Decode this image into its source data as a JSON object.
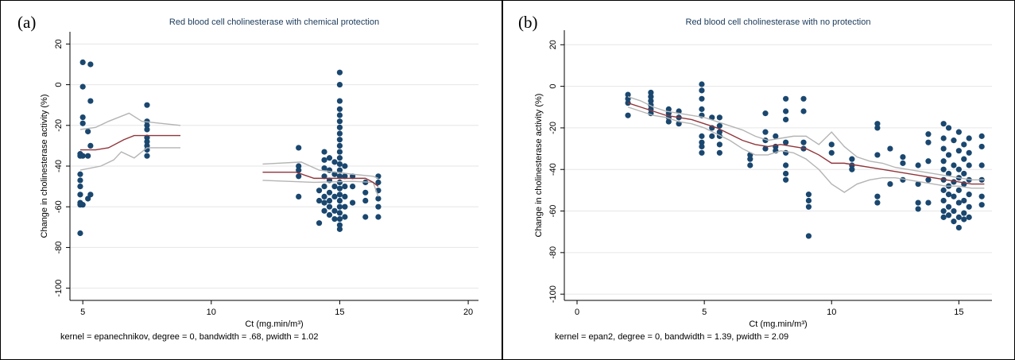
{
  "chart_data": [
    {
      "type": "scatter",
      "panel_label": "(a)",
      "title": "Red blood cell cholinesterase with chemical protection",
      "x_label": "Ct (mg.min/m³)",
      "y_label": "Change in cholinesterase activity (%)",
      "note": "kernel = epanechnikov, degree = 0, bandwidth = .68, pwidth = 1.02",
      "xlim": [
        4.5,
        20.4
      ],
      "ylim": [
        -106,
        26
      ],
      "xticks": [
        5,
        10,
        15,
        20
      ],
      "yticks": [
        20,
        0,
        -20,
        -40,
        -60,
        -80,
        -100
      ],
      "grid": true,
      "series": [
        {
          "type": "scatter",
          "color": "#1a476f",
          "x": [
            4.9,
            4.9,
            4.9,
            4.9,
            4.9,
            4.9,
            4.9,
            4.9,
            4.9,
            5.0,
            5.0,
            5.0,
            5.0,
            5.0,
            5.0,
            5.2,
            5.2,
            5.2,
            5.3,
            5.3,
            5.3,
            5.3,
            7.5,
            7.5,
            7.5,
            7.5,
            7.5,
            7.5,
            7.5,
            7.5,
            7.5,
            13.4,
            13.4,
            13.4,
            13.4,
            13.4,
            14.2,
            14.2,
            14.2,
            14.4,
            14.4,
            14.4,
            14.4,
            14.4,
            14.4,
            14.4,
            14.4,
            14.6,
            14.6,
            14.6,
            14.6,
            14.6,
            14.6,
            14.6,
            14.8,
            14.8,
            14.8,
            14.8,
            14.8,
            14.8,
            15,
            15,
            15,
            15,
            15,
            15,
            15,
            15,
            15,
            15,
            15,
            15,
            15,
            15,
            15,
            15,
            15,
            15,
            15,
            15,
            15,
            15,
            15,
            15,
            15.2,
            15.2,
            15.2,
            15.2,
            15.2,
            15.2,
            15.5,
            15.5,
            15.5,
            16,
            16,
            16,
            16,
            16.5,
            16.5,
            16.5,
            16.5,
            16.5,
            16.5
          ],
          "values": [
            -34,
            -35,
            -44,
            -47,
            -50,
            -54,
            -58,
            -59,
            -73,
            11,
            -1,
            -16,
            -19,
            -35,
            -59,
            -23,
            -35,
            -56,
            10,
            -8,
            -30,
            -54,
            -10,
            -18,
            -20,
            -22,
            -26,
            -28,
            -30,
            -32,
            -35,
            -31,
            -40,
            -42,
            -45,
            -55,
            -68,
            -57,
            -52,
            -33,
            -37,
            -41,
            -45,
            -50,
            -55,
            -58,
            -62,
            -36,
            -42,
            -47,
            -53,
            -57,
            -60,
            -64,
            -38,
            -44,
            -50,
            -55,
            -62,
            -66,
            6,
            0,
            -8,
            -12,
            -15,
            -18,
            -21,
            -24,
            -27,
            -30,
            -33,
            -36,
            -39,
            -42,
            -45,
            -48,
            -51,
            -54,
            -57,
            -60,
            -63,
            -66,
            -69,
            -71,
            -40,
            -45,
            -50,
            -55,
            -60,
            -65,
            -45,
            -50,
            -58,
            -48,
            -53,
            -57,
            -65,
            -45,
            -48,
            -52,
            -56,
            -60,
            -65
          ]
        },
        {
          "type": "line",
          "color": "#b4b4b4",
          "x": [
            4.9,
            5.5,
            6.0,
            6.8,
            7.3,
            8.8,
            10,
            12,
            13.5,
            14.2,
            15.5,
            16.3,
            16.5
          ],
          "values": [
            -22,
            -21,
            -18,
            -14,
            -18,
            -20,
            null,
            -39,
            -38,
            -42,
            -44,
            -45,
            -46
          ]
        },
        {
          "type": "line",
          "color": "#b4b4b4",
          "x": [
            4.9,
            5.7,
            6.2,
            6.5,
            7.0,
            7.5,
            8.8,
            10,
            12,
            14,
            15.5,
            16.3,
            16.5
          ],
          "values": [
            -42,
            -40,
            -37,
            -33,
            -36,
            -31,
            -31,
            null,
            -47,
            -48,
            -47.5,
            -48,
            -55
          ]
        },
        {
          "type": "line",
          "color": "#90353b",
          "x": [
            4.9,
            5.5,
            6.0,
            6.6,
            7.0,
            8.8,
            10,
            12,
            13.3,
            14,
            15,
            16,
            16.3,
            16.5
          ],
          "values": [
            -32,
            -32,
            -31,
            -27,
            -25,
            -25,
            null,
            -43,
            -43,
            -46,
            -46,
            -46,
            -48,
            -50
          ]
        }
      ]
    },
    {
      "type": "scatter",
      "panel_label": "(b)",
      "title": "Red blood cell cholinesterase with no protection",
      "x_label": "Ct (mg.min/m³)",
      "y_label": "Change in cholinesterase activity (%)",
      "note": "kernel = epan2, degree = 0, bandwidth = 1.39, pwidth = 2.09",
      "xlim": [
        -0.5,
        16.3
      ],
      "ylim": [
        -103,
        27
      ],
      "xticks": [
        0,
        5,
        10,
        15
      ],
      "yticks": [
        20,
        0,
        -20,
        -40,
        -60,
        -80,
        -100
      ],
      "grid": true,
      "series": [
        {
          "type": "scatter",
          "color": "#1a476f",
          "x": [
            2,
            2,
            2,
            2,
            2.9,
            2.9,
            2.9,
            2.9,
            2.9,
            2.9,
            3.6,
            3.6,
            3.6,
            3.6,
            4,
            4,
            4,
            4.9,
            4.9,
            4.9,
            4.9,
            4.9,
            4.9,
            4.9,
            4.9,
            4.9,
            5.3,
            5.3,
            5.3,
            5.6,
            5.6,
            5.6,
            5.6,
            5.6,
            5.6,
            6.8,
            6.8,
            6.8,
            7.4,
            7.4,
            7.4,
            7.4,
            7.8,
            7.8,
            7.8,
            8.2,
            8.2,
            8.2,
            8.2,
            8.2,
            8.2,
            8.2,
            8.2,
            8.9,
            8.9,
            8.9,
            8.9,
            9.1,
            9.1,
            9.1,
            9.1,
            10,
            10,
            10.8,
            10.8,
            10.8,
            11.8,
            11.8,
            11.8,
            11.8,
            11.8,
            12.3,
            12.3,
            12.8,
            12.8,
            12.8,
            13.4,
            13.4,
            13.4,
            13.4,
            13.8,
            13.8,
            13.8,
            13.8,
            13.8,
            14.4,
            14.4,
            14.4,
            14.4,
            14.4,
            14.4,
            14.4,
            14.4,
            14.4,
            14.4,
            14.6,
            14.6,
            14.6,
            14.6,
            14.6,
            14.6,
            14.6,
            14.8,
            14.8,
            14.8,
            14.8,
            14.8,
            14.8,
            15,
            15,
            15,
            15,
            15,
            15,
            15,
            15,
            15.2,
            15.2,
            15.2,
            15.2,
            15.2,
            15.2,
            15.2,
            15.4,
            15.4,
            15.4,
            15.4,
            15.4,
            15.4,
            15.4,
            15.9,
            15.9,
            15.9,
            15.9,
            15.9,
            15.9
          ],
          "values": [
            -4,
            -6,
            -8,
            -14,
            -3,
            -5,
            -7,
            -9,
            -11,
            -13,
            -11,
            -13,
            -15,
            -17,
            -12,
            -15,
            -18,
            1,
            -2,
            -6,
            -11,
            -14,
            -24,
            -27,
            -29,
            -32,
            -15,
            -20,
            -24,
            -15,
            -19,
            -22,
            -24,
            -28,
            -32,
            -33,
            -35,
            -38,
            -13,
            -22,
            -26,
            -30,
            -24,
            -29,
            -31,
            -6,
            -12,
            -16,
            -27,
            -32,
            -38,
            -42,
            -45,
            -6,
            -12,
            -27,
            -30,
            -52,
            -55,
            -58,
            -72,
            -28,
            -32,
            -35,
            -38,
            -40,
            -18,
            -20,
            -33,
            -53,
            -56,
            -30,
            -47,
            -34,
            -37,
            -45,
            -38,
            -47,
            -56,
            -59,
            -23,
            -27,
            -36,
            -45,
            -56,
            -18,
            -25,
            -30,
            -36,
            -40,
            -45,
            -50,
            -55,
            -60,
            -63,
            -20,
            -33,
            -42,
            -48,
            -52,
            -58,
            -62,
            -26,
            -38,
            -46,
            -53,
            -60,
            -65,
            -22,
            -31,
            -40,
            -44,
            -50,
            -56,
            -63,
            -68,
            -28,
            -35,
            -42,
            -47,
            -55,
            -61,
            -64,
            -25,
            -32,
            -38,
            -45,
            -52,
            -58,
            -63,
            -24,
            -29,
            -38,
            -45,
            -53,
            -57
          ]
        },
        {
          "type": "line",
          "color": "#b4b4b4",
          "x": [
            2,
            2.5,
            3,
            3.5,
            4,
            4.5,
            5,
            5.5,
            6,
            6.5,
            7,
            7.5,
            8,
            8.5,
            9,
            9.5,
            10,
            10.5,
            11,
            11.5,
            12,
            12.5,
            13,
            13.5,
            14,
            14.5,
            15,
            15.5,
            16
          ],
          "values": [
            -5,
            -7,
            -10,
            -12,
            -13,
            -14,
            -15,
            -17,
            -19,
            -21,
            -24,
            -26,
            -25,
            -24,
            -24,
            -28,
            -22,
            -29,
            -34,
            -36,
            -37,
            -39,
            -40,
            -41,
            -42,
            -43,
            -44,
            -45,
            -45
          ]
        },
        {
          "type": "line",
          "color": "#b4b4b4",
          "x": [
            2,
            2.5,
            3,
            3.5,
            4,
            4.5,
            5,
            5.5,
            6,
            6.5,
            7,
            7.5,
            8,
            8.5,
            9,
            9.5,
            10,
            10.5,
            11,
            11.5,
            12,
            12.5,
            13,
            13.5,
            14,
            14.5,
            15,
            15.5,
            16
          ],
          "values": [
            -10,
            -12,
            -14,
            -15,
            -17,
            -18,
            -20,
            -23,
            -26,
            -30,
            -33,
            -33,
            -31,
            -32,
            -35,
            -40,
            -47,
            -51,
            -47,
            -45,
            -44,
            -44,
            -45,
            -46,
            -47,
            -48,
            -48,
            -49,
            -49
          ]
        },
        {
          "type": "line",
          "color": "#90353b",
          "x": [
            2,
            2.5,
            3,
            3.5,
            4,
            4.5,
            5,
            5.5,
            6,
            6.5,
            7,
            7.5,
            8,
            8.5,
            9,
            9.5,
            10,
            10.5,
            11,
            11.5,
            12,
            12.5,
            13,
            13.5,
            14,
            14.5,
            15,
            15.5,
            16
          ],
          "values": [
            -8,
            -10,
            -12,
            -14,
            -15,
            -16,
            -18,
            -20,
            -23,
            -26,
            -28,
            -29,
            -28,
            -29,
            -30,
            -33,
            -37,
            -37,
            -38,
            -39,
            -40,
            -41,
            -42,
            -43,
            -44,
            -45,
            -46,
            -47,
            -47
          ]
        }
      ]
    }
  ]
}
